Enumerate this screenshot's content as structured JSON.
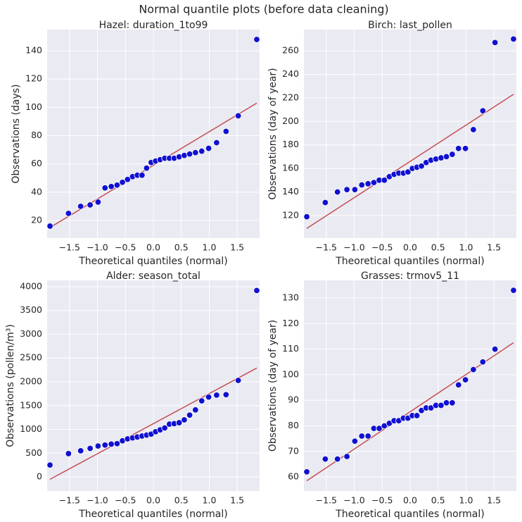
{
  "title": "Normal quantile plots (before data cleaning)",
  "chart_data": [
    {
      "type": "scatter",
      "title": "Hazel: duration_1to99",
      "xlabel": "Theoretical quantiles (normal)",
      "ylabel": "Observations (days)",
      "x": [
        -1.849,
        -1.518,
        -1.3,
        -1.131,
        -0.989,
        -0.865,
        -0.753,
        -0.649,
        -0.553,
        -0.461,
        -0.372,
        -0.287,
        -0.203,
        -0.121,
        -0.04,
        0.04,
        0.121,
        0.203,
        0.287,
        0.372,
        0.461,
        0.553,
        0.649,
        0.753,
        0.865,
        0.989,
        1.131,
        1.3,
        1.518,
        1.849
      ],
      "values": [
        16,
        25,
        30,
        31,
        33,
        43,
        44,
        45,
        47,
        49,
        51,
        52,
        52,
        57,
        61,
        62,
        63,
        64,
        64,
        64,
        65,
        66,
        67,
        68,
        69,
        71,
        75,
        83,
        94,
        148
      ],
      "color": "#1010d0",
      "line": {
        "x": [
          -1.849,
          1.849
        ],
        "values": [
          15,
          103
        ],
        "color": "#c44e52"
      },
      "xlim": [
        -1.9,
        1.9
      ],
      "ylim": [
        7.5,
        155
      ],
      "xticks": [
        {
          "value": -1.5,
          "label": "−1.5"
        },
        {
          "value": -1,
          "label": "−1.0"
        },
        {
          "value": -0.5,
          "label": "−0.5"
        },
        {
          "value": 0,
          "label": "0.0"
        },
        0.5,
        {
          "value": 1,
          "label": "1.0"
        },
        1.5
      ],
      "yticks": [
        20,
        40,
        60,
        80,
        100,
        120,
        140
      ],
      "grid": true
    },
    {
      "type": "scatter",
      "title": "Birch: last_pollen",
      "xlabel": "Theoretical quantiles (normal)",
      "ylabel": "Observations (day of year)",
      "x": [
        -1.849,
        -1.518,
        -1.3,
        -1.131,
        -0.989,
        -0.865,
        -0.753,
        -0.649,
        -0.553,
        -0.461,
        -0.372,
        -0.287,
        -0.203,
        -0.121,
        -0.04,
        0.04,
        0.121,
        0.203,
        0.287,
        0.372,
        0.461,
        0.553,
        0.649,
        0.753,
        0.865,
        0.989,
        1.131,
        1.3,
        1.518,
        1.849
      ],
      "values": [
        119,
        131,
        140,
        142,
        142,
        146,
        147,
        148,
        150,
        150,
        153,
        155,
        156,
        156,
        157,
        160,
        161,
        162,
        165,
        167,
        168,
        169,
        170,
        172,
        177,
        177,
        193,
        209,
        267,
        270
      ],
      "color": "#1010d0",
      "line": {
        "x": [
          -1.849,
          1.849
        ],
        "values": [
          109,
          223
        ],
        "color": "#c44e52"
      },
      "xlim": [
        -1.9,
        1.9
      ],
      "ylim": [
        100.8,
        278
      ],
      "xticks": [
        {
          "value": -1.5,
          "label": "−1.5"
        },
        {
          "value": -1,
          "label": "−1.0"
        },
        {
          "value": -0.5,
          "label": "−0.5"
        },
        {
          "value": 0,
          "label": "0.0"
        },
        0.5,
        {
          "value": 1,
          "label": "1.0"
        },
        1.5
      ],
      "yticks": [
        120,
        140,
        160,
        180,
        200,
        220,
        240,
        260
      ],
      "grid": true
    },
    {
      "type": "scatter",
      "title": "Alder: season_total",
      "xlabel": "Theoretical quantiles (normal)",
      "ylabel": "Observations (pollen/m³)",
      "x": [
        -1.849,
        -1.518,
        -1.3,
        -1.131,
        -0.989,
        -0.865,
        -0.753,
        -0.649,
        -0.553,
        -0.461,
        -0.372,
        -0.287,
        -0.203,
        -0.121,
        -0.04,
        0.04,
        0.121,
        0.203,
        0.287,
        0.372,
        0.461,
        0.553,
        0.649,
        0.753,
        0.865,
        0.989,
        1.131,
        1.3,
        1.518,
        1.849
      ],
      "values": [
        250,
        490,
        550,
        600,
        650,
        670,
        690,
        700,
        760,
        800,
        820,
        840,
        860,
        880,
        900,
        950,
        990,
        1030,
        1110,
        1120,
        1140,
        1200,
        1300,
        1410,
        1600,
        1680,
        1720,
        1730,
        2030,
        3920
      ],
      "color": "#1010d0",
      "line": {
        "x": [
          -1.849,
          1.849
        ],
        "values": [
          -50,
          2290
        ],
        "color": "#c44e52"
      },
      "xlim": [
        -1.9,
        1.9
      ],
      "ylim": [
        -296,
        4133
      ],
      "xticks": [
        {
          "value": -1.5,
          "label": "−1.5"
        },
        {
          "value": -1,
          "label": "−1.0"
        },
        {
          "value": -0.5,
          "label": "−0.5"
        },
        {
          "value": 0,
          "label": "0.0"
        },
        0.5,
        {
          "value": 1,
          "label": "1.0"
        },
        1.5
      ],
      "yticks": [
        0,
        500,
        1000,
        1500,
        2000,
        2500,
        3000,
        3500,
        4000
      ],
      "grid": true
    },
    {
      "type": "scatter",
      "title": "Grasses: trmov5_11",
      "xlabel": "Theoretical quantiles (normal)",
      "ylabel": "Observations (day of year)",
      "x": [
        -1.849,
        -1.518,
        -1.3,
        -1.131,
        -0.989,
        -0.865,
        -0.753,
        -0.649,
        -0.553,
        -0.461,
        -0.372,
        -0.287,
        -0.203,
        -0.121,
        -0.04,
        0.04,
        0.121,
        0.203,
        0.287,
        0.372,
        0.461,
        0.553,
        0.649,
        0.753,
        0.865,
        0.989,
        1.131,
        1.3,
        1.518,
        1.849
      ],
      "values": [
        62,
        67,
        67,
        68,
        74,
        76,
        76,
        79,
        79,
        80,
        81,
        82,
        82,
        83,
        83,
        84,
        84,
        86,
        87,
        87,
        88,
        88,
        89,
        89,
        96,
        98,
        102,
        105,
        110,
        133
      ],
      "color": "#1010d0",
      "line": {
        "x": [
          -1.849,
          1.849
        ],
        "values": [
          58.5,
          112.5
        ],
        "color": "#c44e52"
      },
      "xlim": [
        -1.9,
        1.9
      ],
      "ylim": [
        54.5,
        136.9
      ],
      "xticks": [
        {
          "value": -1.5,
          "label": "−1.5"
        },
        {
          "value": -1,
          "label": "−1.0"
        },
        {
          "value": -0.5,
          "label": "−0.5"
        },
        {
          "value": 0,
          "label": "0.0"
        },
        0.5,
        {
          "value": 1,
          "label": "1.0"
        },
        1.5
      ],
      "yticks": [
        60,
        70,
        80,
        90,
        100,
        110,
        120,
        130
      ],
      "grid": true
    }
  ]
}
